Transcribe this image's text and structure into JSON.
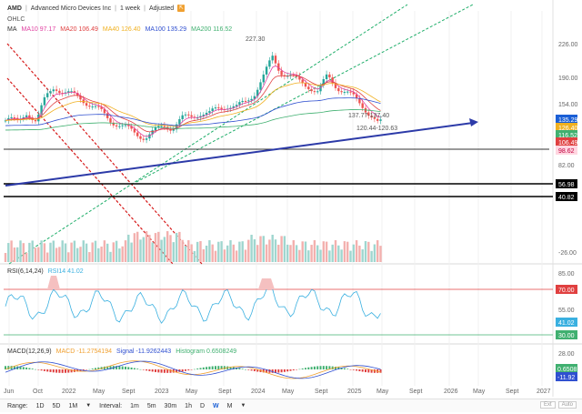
{
  "header": {
    "symbol": "AMD",
    "name": "Advanced Micro Devices Inc",
    "interval": "1 week",
    "adjust": "Adjusted",
    "ext_icon": "⇱"
  },
  "ohlc_label": "OHLC",
  "ma_labels": [
    {
      "text": "MA",
      "color": "#333333"
    },
    {
      "text": "MA10 97.17",
      "color": "#e040a0"
    },
    {
      "text": "MA20 106.49",
      "color": "#e04040"
    },
    {
      "text": "MA40 126.40",
      "color": "#f0b020"
    },
    {
      "text": "MA100 135.29",
      "color": "#3050d0"
    },
    {
      "text": "MA200 116.52",
      "color": "#40b070"
    }
  ],
  "price_axis": [
    "226.00",
    "190.00",
    "154.00",
    "82.00",
    "-26.00"
  ],
  "price_tags": [
    {
      "text": "135.29",
      "bg": "#1a5fd6",
      "fg": "#ffffff"
    },
    {
      "text": "126.40",
      "bg": "#f0b020",
      "fg": "#ffffff"
    },
    {
      "text": "116.52",
      "bg": "#40b070",
      "fg": "#ffffff"
    },
    {
      "text": "106.49",
      "bg": "#e04040",
      "fg": "#ffffff"
    },
    {
      "text": "98.62",
      "bg": "#ffd6e0",
      "fg": "#c00040"
    },
    {
      "text": "56.98",
      "bg": "#000000",
      "fg": "#ffffff"
    },
    {
      "text": "40.82",
      "bg": "#000000",
      "fg": "#ffffff"
    }
  ],
  "annotations": {
    "peak": "227.30",
    "range_a": "137.77-137.40",
    "range_b": "120.44-120.63"
  },
  "rsi": {
    "label": "RSI(6,14,24)",
    "value_label": "RSI14 41.02",
    "axis": [
      "85.00",
      "55.00"
    ],
    "tags": [
      {
        "text": "70.00",
        "bg": "#e04040"
      },
      {
        "text": "41.02",
        "bg": "#3ab0e0"
      },
      {
        "text": "30.00",
        "bg": "#40b070"
      }
    ]
  },
  "macd": {
    "label": "MACD(12,26,9)",
    "macd_label": "MACD -11.2754194",
    "signal_label": "Signal -11.9262443",
    "hist_label": "Histogram 0.6508249",
    "axis": [
      "28.00"
    ],
    "tags": [
      {
        "text": "0.6508",
        "bg": "#40b070"
      },
      {
        "text": "-11.92",
        "bg": "#3050d0"
      }
    ]
  },
  "x_axis": [
    "Jun",
    "Oct",
    "2022",
    "May",
    "Sept",
    "2023",
    "May",
    "Sept",
    "2024",
    "May",
    "Sept",
    "2025",
    "May",
    "Sept",
    "2026",
    "May",
    "Sept",
    "2027"
  ],
  "bottom": {
    "range_label": "Range:",
    "ranges": [
      "1D",
      "5D",
      "1M"
    ],
    "interval_label": "Interval:",
    "intervals": [
      "1m",
      "5m",
      "30m",
      "1h",
      "D",
      "W",
      "M"
    ],
    "active_interval": "W",
    "right_buttons": [
      "Ext",
      "Auto"
    ]
  },
  "colors": {
    "up": "#26a69a",
    "down": "#ef5350",
    "trend": "#2c3aa8",
    "channel_green": "#1fae6a",
    "channel_red": "#d61a1a"
  }
}
